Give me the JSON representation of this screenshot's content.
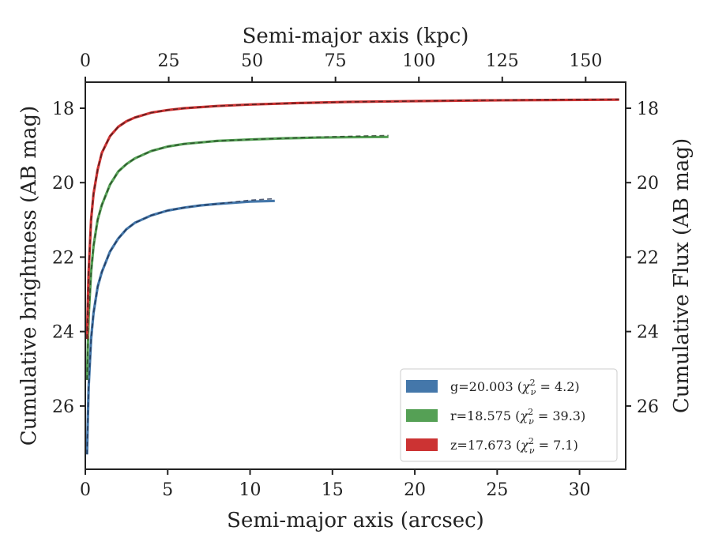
{
  "chart_data": {
    "type": "line",
    "xlabel": "Semi-major axis (arcsec)",
    "x2label": "Semi-major axis (kpc)",
    "ylabel": "Cumulative brightness (AB mag)",
    "y2label": "Cumulative Flux (AB mag)",
    "xlim": [
      0,
      32.8
    ],
    "x2lim": [
      0,
      162
    ],
    "ylim": [
      27.7,
      17.3
    ],
    "y_inverted": true,
    "xticks": [
      "0",
      "5",
      "10",
      "15",
      "20",
      "25",
      "30"
    ],
    "xtick_values": [
      0,
      5,
      10,
      15,
      20,
      25,
      30
    ],
    "x2ticks": [
      "0",
      "25",
      "50",
      "75",
      "100",
      "125",
      "150"
    ],
    "x2tick_values": [
      0,
      25,
      50,
      75,
      100,
      125,
      150
    ],
    "yticks": [
      "18",
      "20",
      "22",
      "24",
      "26"
    ],
    "ytick_values": [
      18,
      20,
      22,
      24,
      26
    ],
    "grid": false,
    "legend_position": "lower-right",
    "series": [
      {
        "name": "g",
        "color": "#4477aa",
        "model_color": "#1a2a4a",
        "legend": {
          "band": "g",
          "mag": "20.003",
          "chi2": "4.2"
        },
        "x": [
          0.1,
          0.2,
          0.35,
          0.5,
          0.75,
          1.0,
          1.5,
          2.0,
          2.5,
          3.0,
          4.0,
          5.0,
          6.0,
          7.0,
          8.0,
          9.0,
          10.0,
          11.5
        ],
        "y": [
          27.3,
          25.5,
          24.2,
          23.5,
          22.8,
          22.4,
          21.85,
          21.5,
          21.25,
          21.08,
          20.88,
          20.75,
          20.67,
          20.61,
          20.57,
          20.54,
          20.51,
          20.49
        ],
        "model_end": 20.43
      },
      {
        "name": "r",
        "color": "#55a055",
        "model_color": "#1f3a1f",
        "legend": {
          "band": "r",
          "mag": "18.575",
          "chi2": "39.3"
        },
        "x": [
          0.1,
          0.2,
          0.35,
          0.5,
          0.75,
          1.0,
          1.5,
          2.0,
          2.5,
          3.0,
          4.0,
          5.0,
          6.0,
          8.0,
          10.0,
          12.0,
          14.0,
          16.0,
          18.4
        ],
        "y": [
          25.3,
          23.6,
          22.4,
          21.7,
          21.0,
          20.6,
          20.05,
          19.7,
          19.5,
          19.35,
          19.15,
          19.03,
          18.96,
          18.88,
          18.84,
          18.81,
          18.79,
          18.78,
          18.77
        ],
        "model_end": 18.73
      },
      {
        "name": "z",
        "color": "#cc3333",
        "model_color": "#3a1a1a",
        "legend": {
          "band": "z",
          "mag": "17.673",
          "chi2": "7.1"
        },
        "x": [
          0.1,
          0.2,
          0.35,
          0.5,
          0.75,
          1.0,
          1.5,
          2.0,
          2.5,
          3.0,
          4.0,
          5.0,
          6.0,
          8.0,
          10.0,
          13.0,
          16.0,
          20.0,
          24.0,
          28.0,
          32.4
        ],
        "y": [
          24.2,
          22.4,
          21.0,
          20.3,
          19.65,
          19.2,
          18.75,
          18.5,
          18.35,
          18.25,
          18.12,
          18.05,
          18.0,
          17.94,
          17.9,
          17.86,
          17.83,
          17.81,
          17.79,
          17.78,
          17.77
        ],
        "model_end": 17.76
      }
    ]
  }
}
